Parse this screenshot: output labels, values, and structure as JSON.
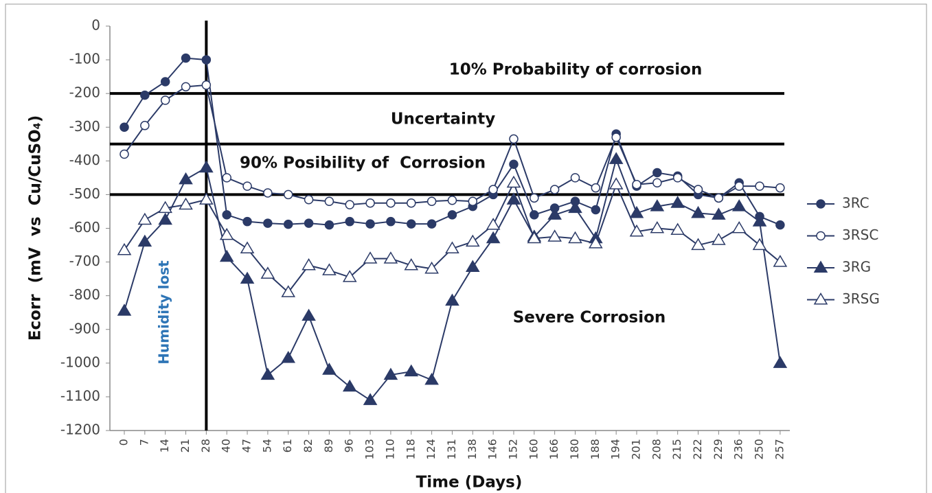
{
  "chart_data": {
    "type": "line",
    "y_label": "Ecorr  (mV  vs  Cu/CuSO₄)",
    "x_label": "Time (Days)",
    "categories": [
      "0",
      "7",
      "14",
      "21",
      "28",
      "40",
      "47",
      "54",
      "61",
      "82",
      "89",
      "96",
      "103",
      "110",
      "118",
      "124",
      "131",
      "138",
      "146",
      "152",
      "160",
      "166",
      "180",
      "188",
      "194",
      "201",
      "208",
      "215",
      "222",
      "229",
      "236",
      "250",
      "257"
    ],
    "series": [
      {
        "name": "3RC",
        "color": "#2b3a67",
        "marker": "circle",
        "filled": true,
        "values": [
          -300,
          -205,
          -165,
          -95,
          -100,
          -560,
          -580,
          -585,
          -588,
          -585,
          -590,
          -580,
          -587,
          -580,
          -587,
          -587,
          -560,
          -535,
          -500,
          -410,
          -560,
          -540,
          -520,
          -545,
          -320,
          -475,
          -435,
          -445,
          -500,
          -510,
          -465,
          -565,
          -590
        ]
      },
      {
        "name": "3RSC",
        "color": "#2b3a67",
        "marker": "circle",
        "filled": false,
        "values": [
          -380,
          -295,
          -220,
          -180,
          -175,
          -450,
          -475,
          -495,
          -500,
          -515,
          -520,
          -530,
          -525,
          -525,
          -525,
          -520,
          -517,
          -520,
          -485,
          -335,
          -510,
          -485,
          -450,
          -480,
          -330,
          -470,
          -465,
          -450,
          -485,
          -510,
          -475,
          -475,
          -480
        ]
      },
      {
        "name": "3RG",
        "color": "#2b3a67",
        "marker": "triangle",
        "filled": true,
        "values": [
          -845,
          -640,
          -575,
          -455,
          -420,
          -685,
          -750,
          -1035,
          -985,
          -860,
          -1020,
          -1070,
          -1110,
          -1035,
          -1025,
          -1050,
          -815,
          -715,
          -630,
          -515,
          -625,
          -560,
          -540,
          -630,
          -395,
          -555,
          -535,
          -525,
          -555,
          -560,
          -535,
          -580,
          -1000
        ]
      },
      {
        "name": "3RSG",
        "color": "#2b3a67",
        "marker": "triangle",
        "filled": false,
        "values": [
          -665,
          -575,
          -540,
          -530,
          -515,
          -620,
          -660,
          -735,
          -790,
          -710,
          -725,
          -745,
          -690,
          -690,
          -710,
          -720,
          -660,
          -640,
          -590,
          -465,
          -630,
          -625,
          -630,
          -645,
          -470,
          -610,
          -600,
          -605,
          -650,
          -635,
          -600,
          -650,
          -700
        ]
      }
    ],
    "ylim": [
      -1200,
      0
    ],
    "yticks": [
      0,
      -100,
      -200,
      -300,
      -400,
      -500,
      -600,
      -700,
      -800,
      -900,
      -1000,
      -1100,
      -1200
    ],
    "reference_lines": [
      -200,
      -350,
      -500
    ],
    "vline": "28",
    "annotations": [
      "10% Probability of corrosion",
      "Uncertainty",
      "90% Posibility of  Corrosion",
      "Severe Corrosion",
      "Humidity lost"
    ],
    "legend": "right",
    "grid": false
  }
}
